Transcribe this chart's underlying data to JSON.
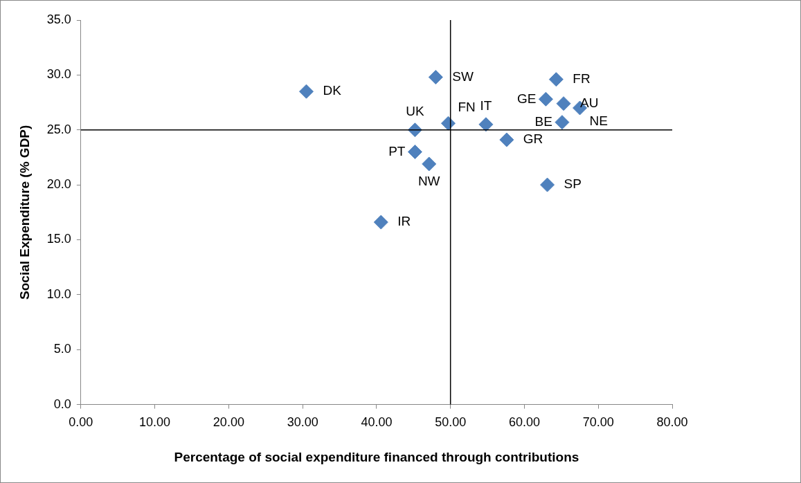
{
  "chart_data": {
    "type": "scatter",
    "xlabel": "Percentage of social expenditure financed through contributions",
    "ylabel": "Social Expenditure (% GDP)",
    "series": [
      {
        "color": "#4f81bd",
        "x": [
          30.5,
          48.0,
          64.3,
          62.9,
          65.3,
          67.5,
          49.7,
          54.8,
          65.1,
          45.2,
          57.6,
          45.2,
          47.1,
          63.1,
          40.6
        ],
        "values": [
          28.5,
          29.8,
          29.6,
          27.8,
          27.4,
          27.0,
          25.6,
          25.5,
          25.7,
          25.0,
          24.1,
          23.0,
          21.9,
          20.0,
          16.6
        ]
      }
    ],
    "annotations": [
      {
        "text": "DK",
        "x": 30.5,
        "y": 28.5
      },
      {
        "text": "SW",
        "x": 48.0,
        "y": 29.8
      },
      {
        "text": "FR",
        "x": 64.3,
        "y": 29.6
      },
      {
        "text": "GE",
        "x": 62.9,
        "y": 27.8
      },
      {
        "text": "AU",
        "x": 65.3,
        "y": 27.4
      },
      {
        "text": "NE",
        "x": 67.5,
        "y": 27.0
      },
      {
        "text": "FN",
        "x": 49.7,
        "y": 25.6
      },
      {
        "text": "IT",
        "x": 54.8,
        "y": 25.5
      },
      {
        "text": "BE",
        "x": 65.1,
        "y": 25.7
      },
      {
        "text": "UK",
        "x": 45.2,
        "y": 25.0
      },
      {
        "text": "GR",
        "x": 57.6,
        "y": 24.1
      },
      {
        "text": "PT",
        "x": 45.2,
        "y": 23.0
      },
      {
        "text": "NW",
        "x": 47.1,
        "y": 21.9
      },
      {
        "text": "SP",
        "x": 63.1,
        "y": 20.0
      },
      {
        "text": "IR",
        "x": 40.6,
        "y": 16.6
      }
    ],
    "ref_lines": [
      {
        "axis": "x",
        "value": 50,
        "color": "#000000"
      },
      {
        "axis": "y",
        "value": 25,
        "color": "#000000"
      }
    ],
    "xlim": [
      0,
      80
    ],
    "ylim": [
      0,
      35
    ],
    "xticks": [
      {
        "value": 0,
        "label": "0.00"
      },
      {
        "value": 10,
        "label": "10.00"
      },
      {
        "value": 20,
        "label": "20.00"
      },
      {
        "value": 30,
        "label": "30.00"
      },
      {
        "value": 40,
        "label": "40.00"
      },
      {
        "value": 50,
        "label": "50.00"
      },
      {
        "value": 60,
        "label": "60.00"
      },
      {
        "value": 70,
        "label": "70.00"
      },
      {
        "value": 80,
        "label": "80.00"
      }
    ],
    "yticks": [
      {
        "value": 0,
        "label": "0.0"
      },
      {
        "value": 5,
        "label": "5.0"
      },
      {
        "value": 10,
        "label": "10.0"
      },
      {
        "value": 15,
        "label": "15.0"
      },
      {
        "value": 20,
        "label": "20.0"
      },
      {
        "value": 25,
        "label": "25.0"
      },
      {
        "value": 30,
        "label": "30.0"
      },
      {
        "value": 35,
        "label": "35.0"
      }
    ],
    "grid": false,
    "legend": false,
    "marker": "diamond"
  }
}
